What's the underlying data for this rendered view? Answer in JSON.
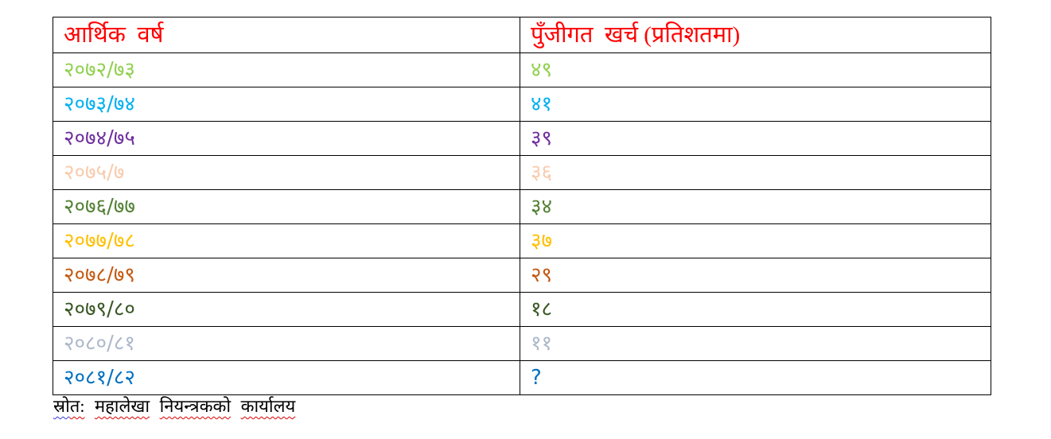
{
  "accent_colors": {
    "header_text": "#FF0000",
    "table_border": "#000000",
    "background": "#FFFFFF"
  },
  "table": {
    "columns": [
      {
        "label": "आर्थिक  वर्ष"
      },
      {
        "label": "पुँजीगत  खर्च (प्रतिशतमा)"
      }
    ],
    "rows": [
      {
        "year": "२०७२/७३",
        "value": "४९",
        "color": "#92D050"
      },
      {
        "year": "२०७३/७४",
        "value": "४१",
        "color": "#00B0F0"
      },
      {
        "year": "२०७४/७५",
        "value": "३९",
        "color": "#7030A0"
      },
      {
        "year": "२०७५/७",
        "value": "३६",
        "color": "#F8CBAD"
      },
      {
        "year": "२०७६/७७",
        "value": "३४",
        "color": "#538135"
      },
      {
        "year": "२०७७/७८",
        "value": "३७",
        "color": "#FFC000"
      },
      {
        "year": "२०७८/७९",
        "value": "२९",
        "color": "#C55A11"
      },
      {
        "year": "२०७९/८०",
        "value": "१८",
        "color": "#385723"
      },
      {
        "year": "२०८०/८१",
        "value": "११",
        "color": "#ADB9CA"
      },
      {
        "year": "२०८१/८२",
        "value": "?",
        "color": "#0070C0"
      }
    ]
  },
  "footer": {
    "segments": [
      {
        "text": "स्रो",
        "squiggle": "#3A3AE0"
      },
      {
        "text": "त:",
        "squiggle": "#E00000"
      },
      {
        "text": " ",
        "squiggle": null
      },
      {
        "text": "महालेखा",
        "squiggle": "#E00000"
      },
      {
        "text": " ",
        "squiggle": null
      },
      {
        "text": "नियन्त्रकको",
        "squiggle": "#E00000"
      },
      {
        "text": " ",
        "squiggle": null
      },
      {
        "text": "कार्यालय",
        "squiggle": "#E00000"
      }
    ]
  }
}
